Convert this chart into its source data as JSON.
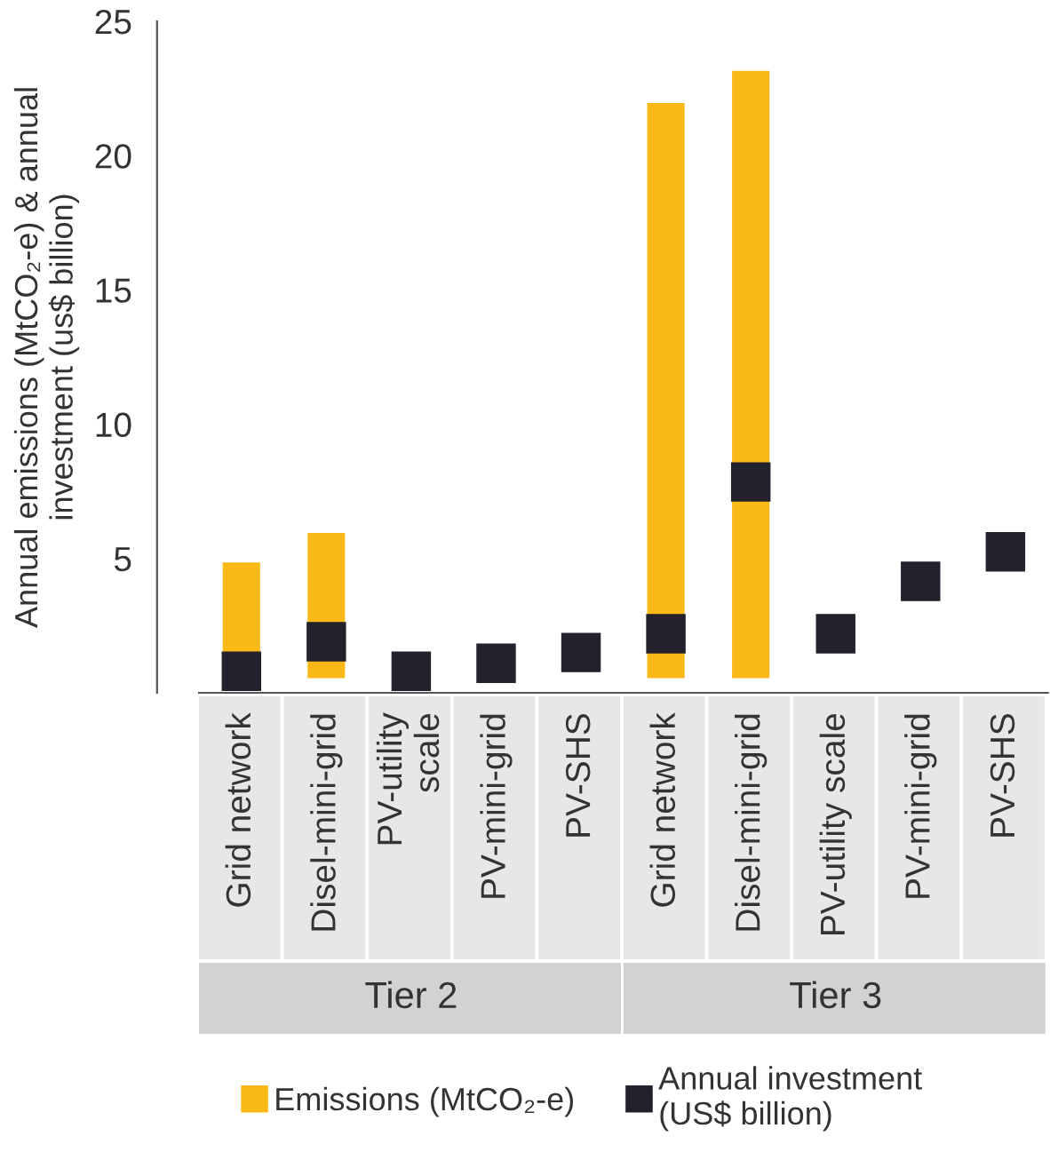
{
  "chart_data": {
    "type": "bar",
    "categories": [
      "Grid network",
      "Disel-mini-grid",
      "PV-utility\nscale",
      "PV-mini-grid",
      "PV-SHS",
      "Grid network",
      "Disel-mini-grid",
      "PV-utility scale",
      "PV-mini-grid",
      "PV-SHS"
    ],
    "ylabel": "Annual emissions (MtCO₂-e) & annual\ninvestment (us$ billion)",
    "series": [
      {
        "name": "Emissions (MtCO₂-e)",
        "color": "#fbb917",
        "base": [
          0.5,
          0.5,
          null,
          null,
          null,
          0.5,
          0.5,
          null,
          null,
          null
        ],
        "values": [
          4.4,
          5.5,
          null,
          null,
          null,
          21.5,
          22.7,
          null,
          null,
          null
        ]
      },
      {
        "name": "Annual investment\n(US$ billion)",
        "type": "scatter",
        "marker": "square",
        "color": "#22212c",
        "values": [
          0.8,
          1.9,
          0.8,
          1.1,
          1.5,
          2.2,
          7.85,
          2.2,
          4.15,
          5.25
        ]
      }
    ],
    "ylim": [
      0,
      25
    ],
    "yticks": [
      5,
      10,
      15,
      20,
      25
    ],
    "annotations": [
      "Tier 2",
      "Tier 3"
    ],
    "legend": "bottom",
    "grid": false
  }
}
